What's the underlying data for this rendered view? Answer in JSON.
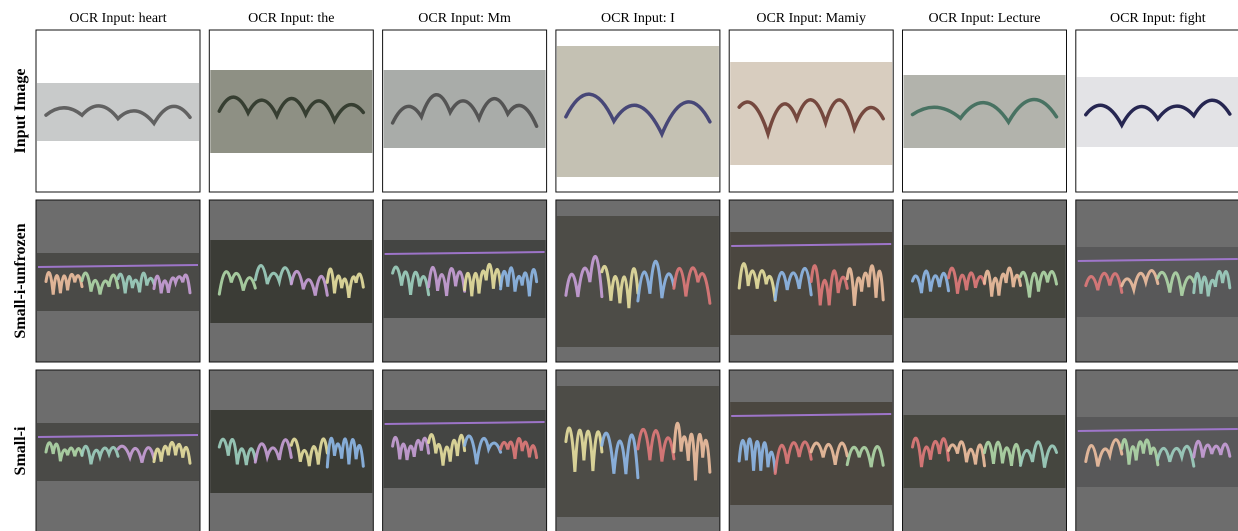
{
  "column_headers": [
    "OCR Input: heart",
    "OCR Input: the",
    "OCR Input: Mm",
    "OCR Input: I",
    "OCR Input: Mamiy",
    "OCR Input: Lecture",
    "OCR Input: fight"
  ],
  "row_labels": [
    "Input Image",
    "Small-i-unfrozen",
    "Small-i"
  ]
}
